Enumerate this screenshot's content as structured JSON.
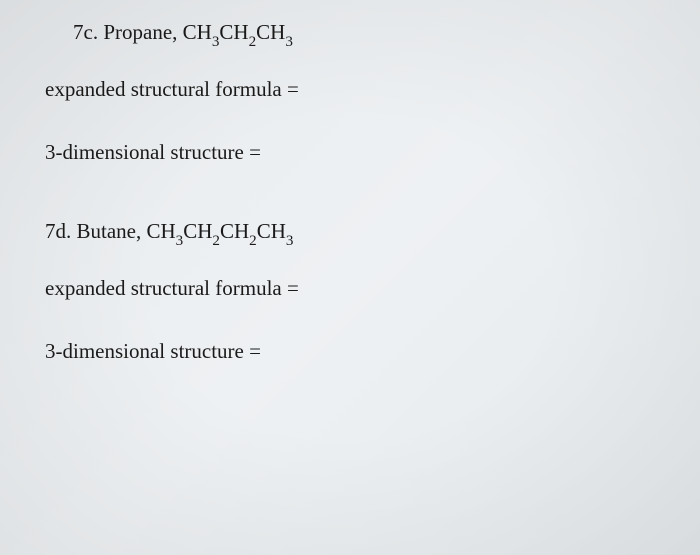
{
  "section_7c": {
    "number": "7c.",
    "compound_name": "Propane,",
    "formula_parts": [
      "CH",
      "3",
      "CH",
      "2",
      "CH",
      "3"
    ],
    "prompt1": "expanded structural formula =",
    "prompt2": "3-dimensional structure ="
  },
  "section_7d": {
    "number": "7d.",
    "compound_name": "Butane,",
    "formula_parts": [
      "CH",
      "3",
      "CH",
      "2",
      "CH",
      "2",
      "CH",
      "3"
    ],
    "prompt1": "expanded structural formula =",
    "prompt2": "3-dimensional structure ="
  },
  "styling": {
    "background_gradient_start": "#e8ebed",
    "background_gradient_end": "#e5e9eb",
    "text_color": "#1a1a1a",
    "font_family": "Times New Roman",
    "heading_fontsize": 21,
    "prompt_fontsize": 21,
    "subscript_scale": 0.72
  }
}
